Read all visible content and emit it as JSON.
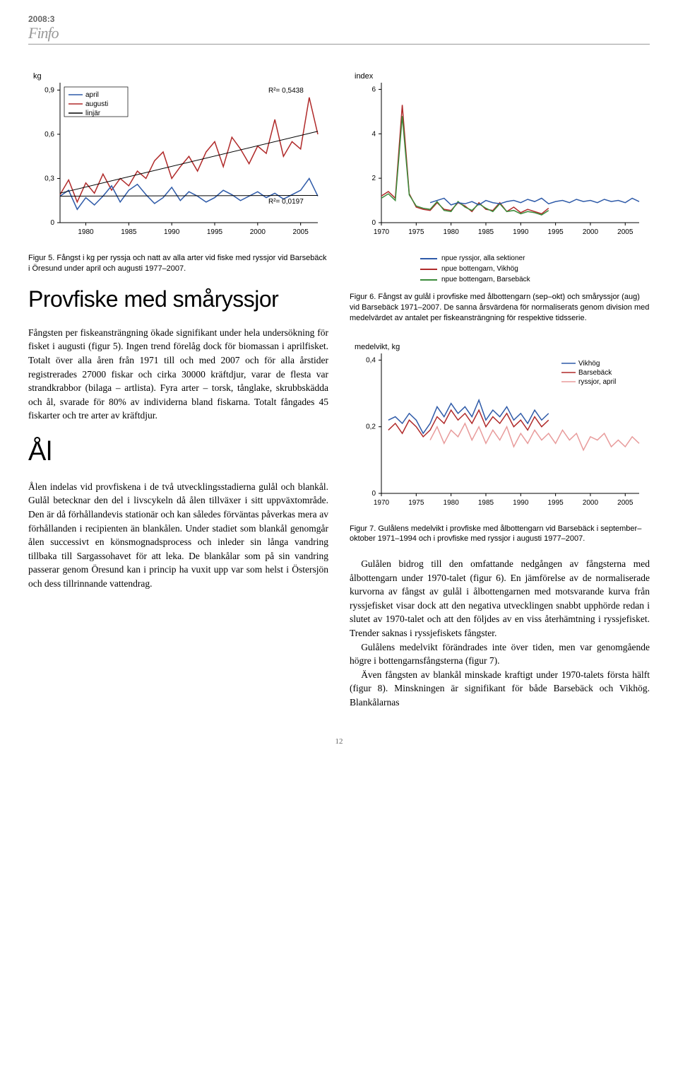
{
  "header": {
    "year": "2008:3",
    "brand": "Finfo"
  },
  "chart5": {
    "type": "line",
    "ylabel_unit": "kg",
    "legend": [
      "april",
      "augusti",
      "linjär"
    ],
    "legend_colors": [
      "#2e5aa8",
      "#b02a2a",
      "#000000"
    ],
    "rsq_labels": [
      "R²= 0,5438",
      "R²= 0,0197"
    ],
    "yticks": [
      0,
      0.3,
      0.6,
      0.9
    ],
    "xticks": [
      1980,
      1985,
      1990,
      1995,
      2000,
      2005
    ],
    "xlim": [
      1977,
      2007
    ],
    "ylim": [
      0,
      0.95
    ],
    "series_april": [
      [
        1977,
        0.18
      ],
      [
        1978,
        0.22
      ],
      [
        1979,
        0.09
      ],
      [
        1980,
        0.17
      ],
      [
        1981,
        0.12
      ],
      [
        1982,
        0.18
      ],
      [
        1983,
        0.25
      ],
      [
        1984,
        0.14
      ],
      [
        1985,
        0.22
      ],
      [
        1986,
        0.26
      ],
      [
        1987,
        0.19
      ],
      [
        1988,
        0.13
      ],
      [
        1989,
        0.17
      ],
      [
        1990,
        0.24
      ],
      [
        1991,
        0.15
      ],
      [
        1992,
        0.21
      ],
      [
        1993,
        0.18
      ],
      [
        1994,
        0.14
      ],
      [
        1995,
        0.17
      ],
      [
        1996,
        0.22
      ],
      [
        1997,
        0.19
      ],
      [
        1998,
        0.15
      ],
      [
        1999,
        0.18
      ],
      [
        2000,
        0.21
      ],
      [
        2001,
        0.17
      ],
      [
        2002,
        0.2
      ],
      [
        2003,
        0.16
      ],
      [
        2004,
        0.19
      ],
      [
        2005,
        0.22
      ],
      [
        2006,
        0.3
      ],
      [
        2007,
        0.18
      ]
    ],
    "series_aug": [
      [
        1977,
        0.19
      ],
      [
        1978,
        0.29
      ],
      [
        1979,
        0.14
      ],
      [
        1980,
        0.27
      ],
      [
        1981,
        0.2
      ],
      [
        1982,
        0.33
      ],
      [
        1983,
        0.22
      ],
      [
        1984,
        0.3
      ],
      [
        1985,
        0.25
      ],
      [
        1986,
        0.35
      ],
      [
        1987,
        0.3
      ],
      [
        1988,
        0.42
      ],
      [
        1989,
        0.48
      ],
      [
        1990,
        0.3
      ],
      [
        1991,
        0.38
      ],
      [
        1992,
        0.45
      ],
      [
        1993,
        0.35
      ],
      [
        1994,
        0.48
      ],
      [
        1995,
        0.55
      ],
      [
        1996,
        0.38
      ],
      [
        1997,
        0.58
      ],
      [
        1998,
        0.5
      ],
      [
        1999,
        0.4
      ],
      [
        2000,
        0.52
      ],
      [
        2001,
        0.47
      ],
      [
        2002,
        0.7
      ],
      [
        2003,
        0.45
      ],
      [
        2004,
        0.55
      ],
      [
        2005,
        0.5
      ],
      [
        2006,
        0.85
      ],
      [
        2007,
        0.6
      ]
    ],
    "trend_aug": [
      [
        1977,
        0.2
      ],
      [
        2007,
        0.62
      ]
    ],
    "trend_apr": [
      [
        1977,
        0.18
      ],
      [
        2007,
        0.185
      ]
    ],
    "grid_color": "#d9d9d9",
    "axis_color": "#000",
    "caption": "Figur 5. Fångst i kg per ryssja och natt av alla arter vid fiske med ryssjor vid Barsebäck i Öresund under april och augusti 1977–2007."
  },
  "chart6": {
    "type": "line",
    "ylabel_unit": "index",
    "yticks": [
      0,
      2,
      4,
      6
    ],
    "xticks": [
      1970,
      1975,
      1980,
      1985,
      1990,
      1995,
      2000,
      2005
    ],
    "xlim": [
      1970,
      2007
    ],
    "ylim": [
      0,
      6.3
    ],
    "legend": [
      "npue ryssjor, alla sektioner",
      "npue bottengarn, Vikhög",
      "npue bottengarn, Barsebäck"
    ],
    "legend_colors": [
      "#2e5aa8",
      "#b02a2a",
      "#3a8b3a"
    ],
    "series_blue": [
      [
        1977,
        0.9
      ],
      [
        1978,
        1.0
      ],
      [
        1979,
        1.1
      ],
      [
        1980,
        0.8
      ],
      [
        1981,
        0.9
      ],
      [
        1982,
        0.85
      ],
      [
        1983,
        0.95
      ],
      [
        1984,
        0.8
      ],
      [
        1985,
        1.0
      ],
      [
        1986,
        0.9
      ],
      [
        1987,
        0.85
      ],
      [
        1988,
        0.95
      ],
      [
        1989,
        1.0
      ],
      [
        1990,
        0.9
      ],
      [
        1991,
        1.05
      ],
      [
        1992,
        0.95
      ],
      [
        1993,
        1.1
      ],
      [
        1994,
        0.85
      ],
      [
        1995,
        0.95
      ],
      [
        1996,
        1.0
      ],
      [
        1997,
        0.9
      ],
      [
        1998,
        1.05
      ],
      [
        1999,
        0.95
      ],
      [
        2000,
        1.0
      ],
      [
        2001,
        0.9
      ],
      [
        2002,
        1.05
      ],
      [
        2003,
        0.95
      ],
      [
        2004,
        1.0
      ],
      [
        2005,
        0.9
      ],
      [
        2006,
        1.1
      ],
      [
        2007,
        0.95
      ]
    ],
    "series_red": [
      [
        1970,
        1.2
      ],
      [
        1971,
        1.4
      ],
      [
        1972,
        1.1
      ],
      [
        1973,
        5.3
      ],
      [
        1974,
        1.3
      ],
      [
        1975,
        0.7
      ],
      [
        1976,
        0.6
      ],
      [
        1977,
        0.55
      ],
      [
        1978,
        0.9
      ],
      [
        1979,
        0.6
      ],
      [
        1980,
        0.55
      ],
      [
        1981,
        0.9
      ],
      [
        1982,
        0.75
      ],
      [
        1983,
        0.5
      ],
      [
        1984,
        0.9
      ],
      [
        1985,
        0.6
      ],
      [
        1986,
        0.55
      ],
      [
        1987,
        0.9
      ],
      [
        1988,
        0.5
      ],
      [
        1989,
        0.7
      ],
      [
        1990,
        0.45
      ],
      [
        1991,
        0.6
      ],
      [
        1992,
        0.5
      ],
      [
        1993,
        0.4
      ],
      [
        1994,
        0.65
      ]
    ],
    "series_green": [
      [
        1970,
        1.1
      ],
      [
        1971,
        1.3
      ],
      [
        1972,
        1.0
      ],
      [
        1973,
        4.8
      ],
      [
        1974,
        1.25
      ],
      [
        1975,
        0.75
      ],
      [
        1976,
        0.65
      ],
      [
        1977,
        0.6
      ],
      [
        1978,
        0.95
      ],
      [
        1979,
        0.55
      ],
      [
        1980,
        0.5
      ],
      [
        1981,
        0.95
      ],
      [
        1982,
        0.7
      ],
      [
        1983,
        0.55
      ],
      [
        1984,
        0.85
      ],
      [
        1985,
        0.65
      ],
      [
        1986,
        0.5
      ],
      [
        1987,
        0.85
      ],
      [
        1988,
        0.5
      ],
      [
        1989,
        0.55
      ],
      [
        1990,
        0.4
      ],
      [
        1991,
        0.5
      ],
      [
        1992,
        0.45
      ],
      [
        1993,
        0.35
      ],
      [
        1994,
        0.55
      ]
    ],
    "caption": "Figur 6. Fångst av gulål i provfiske med ålbottengarn (sep–okt) och småryssjor (aug) vid Barsebäck 1971–2007. De sanna årsvärdena för normaliserats genom division med medelvärdet av antalet per fiskeansträngning för respektive tidsserie."
  },
  "chart7": {
    "type": "line",
    "ylabel_unit": "medelvikt, kg",
    "yticks": [
      0,
      0.2,
      0.4
    ],
    "xticks": [
      1970,
      1975,
      1980,
      1985,
      1990,
      1995,
      2000,
      2005
    ],
    "xlim": [
      1970,
      2007
    ],
    "ylim": [
      0,
      0.42
    ],
    "legend": [
      "Vikhög",
      "Barsebäck",
      "ryssjor, april"
    ],
    "legend_colors": [
      "#2e5aa8",
      "#b02a2a",
      "#e89b9b"
    ],
    "series_blue": [
      [
        1971,
        0.22
      ],
      [
        1972,
        0.23
      ],
      [
        1973,
        0.21
      ],
      [
        1974,
        0.24
      ],
      [
        1975,
        0.22
      ],
      [
        1976,
        0.18
      ],
      [
        1977,
        0.21
      ],
      [
        1978,
        0.26
      ],
      [
        1979,
        0.23
      ],
      [
        1980,
        0.27
      ],
      [
        1981,
        0.24
      ],
      [
        1982,
        0.26
      ],
      [
        1983,
        0.23
      ],
      [
        1984,
        0.28
      ],
      [
        1985,
        0.22
      ],
      [
        1986,
        0.25
      ],
      [
        1987,
        0.23
      ],
      [
        1988,
        0.26
      ],
      [
        1989,
        0.22
      ],
      [
        1990,
        0.24
      ],
      [
        1991,
        0.21
      ],
      [
        1992,
        0.25
      ],
      [
        1993,
        0.22
      ],
      [
        1994,
        0.24
      ]
    ],
    "series_red": [
      [
        1971,
        0.19
      ],
      [
        1972,
        0.21
      ],
      [
        1973,
        0.18
      ],
      [
        1974,
        0.22
      ],
      [
        1975,
        0.2
      ],
      [
        1976,
        0.17
      ],
      [
        1977,
        0.19
      ],
      [
        1978,
        0.23
      ],
      [
        1979,
        0.21
      ],
      [
        1980,
        0.25
      ],
      [
        1981,
        0.22
      ],
      [
        1982,
        0.24
      ],
      [
        1983,
        0.21
      ],
      [
        1984,
        0.25
      ],
      [
        1985,
        0.2
      ],
      [
        1986,
        0.23
      ],
      [
        1987,
        0.21
      ],
      [
        1988,
        0.24
      ],
      [
        1989,
        0.2
      ],
      [
        1990,
        0.22
      ],
      [
        1991,
        0.19
      ],
      [
        1992,
        0.23
      ],
      [
        1993,
        0.2
      ],
      [
        1994,
        0.22
      ]
    ],
    "series_pink": [
      [
        1977,
        0.16
      ],
      [
        1978,
        0.2
      ],
      [
        1979,
        0.15
      ],
      [
        1980,
        0.19
      ],
      [
        1981,
        0.17
      ],
      [
        1982,
        0.21
      ],
      [
        1983,
        0.16
      ],
      [
        1984,
        0.2
      ],
      [
        1985,
        0.15
      ],
      [
        1986,
        0.19
      ],
      [
        1987,
        0.16
      ],
      [
        1988,
        0.2
      ],
      [
        1989,
        0.14
      ],
      [
        1990,
        0.18
      ],
      [
        1991,
        0.15
      ],
      [
        1992,
        0.19
      ],
      [
        1993,
        0.16
      ],
      [
        1994,
        0.18
      ],
      [
        1995,
        0.15
      ],
      [
        1996,
        0.19
      ],
      [
        1997,
        0.16
      ],
      [
        1998,
        0.18
      ],
      [
        1999,
        0.13
      ],
      [
        2000,
        0.17
      ],
      [
        2001,
        0.16
      ],
      [
        2002,
        0.18
      ],
      [
        2003,
        0.14
      ],
      [
        2004,
        0.16
      ],
      [
        2005,
        0.14
      ],
      [
        2006,
        0.17
      ],
      [
        2007,
        0.15
      ]
    ],
    "caption": "Figur 7. Gulålens medelvikt i provfiske med ålbottengarn vid Barsebäck i september–oktober 1971–1994 och i provfiske med ryssjor i augusti 1977–2007."
  },
  "section1": {
    "heading": "Provfiske med småryssjor",
    "body": "Fångsten per fiskeansträngning ökade signifikant under hela undersökning för fisket i augusti (figur 5). Ingen trend förelåg dock för biomassan i aprilfisket. Totalt över alla åren från 1971 till och med 2007 och för alla årstider registrerades 27000 fiskar och cirka 30000 kräftdjur, varar de flesta var strandkrabbor (bilaga – artlista). Fyra arter – torsk, tånglake, skrubbskädda och ål, svarade för 80% av individerna bland fiskarna. Totalt fångades 45 fiskarter och tre arter av kräftdjur."
  },
  "section2": {
    "heading": "Ål",
    "body": "Ålen indelas vid provfiskena i de två utvecklingsstadierna gulål och blankål. Gulål betecknar den del i livscykeln då ålen tillväxer i sitt uppväxtområde. Den är då förhållandevis stationär och kan således förväntas påverkas mera av förhållanden i recipienten än blankålen. Under stadiet som blankål genomgår ålen successivt en könsmognadsprocess och inleder sin långa vandring tillbaka till Sargassohavet för att leka. De blankålar som på sin vandring passerar genom Öresund kan i princip ha vuxit upp var som helst i Östersjön och dess tillrinnande vattendrag."
  },
  "rightbody": {
    "p1": "Gulålen bidrog till den omfattande nedgången av fångsterna med ålbottengarn under 1970-talet (figur 6). En jämförelse av de normaliserade kurvorna av fångst av gulål i ålbottengarnen med motsvarande kurva från ryssjefisket visar dock att den negativa utvecklingen snabbt upphörde redan i slutet av 1970-talet och att den följdes av en viss återhämtning i ryssjefisket. Trender saknas i ryssjefiskets fångster.",
    "p2": "Gulålens medelvikt förändrades inte över tiden, men var genomgående högre i bottengarnsfångsterna (figur 7).",
    "p3": "Även fångsten av blankål minskade kraftigt under 1970-talets första hälft (figur 8). Minskningen är signifikant för både Barsebäck och Vikhög. Blankålarnas"
  },
  "page_number": "12"
}
